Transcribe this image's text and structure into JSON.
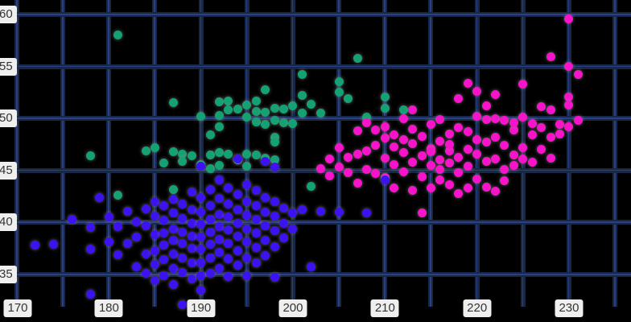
{
  "chart_data": {
    "type": "scatter",
    "title": "",
    "xlabel": "",
    "ylabel": "",
    "grid": true,
    "legend": "none",
    "x_ticks": [
      170,
      180,
      190,
      200,
      210,
      220,
      230
    ],
    "y_ticks": [
      60,
      55,
      50,
      45,
      40,
      35
    ],
    "x_gridlines": [
      170,
      175,
      180,
      185,
      190,
      195,
      200,
      205,
      210,
      215,
      220,
      225,
      230,
      235
    ],
    "y_gridlines": [
      60,
      55,
      50,
      45,
      40,
      35
    ],
    "x_axis_anchor": 170,
    "y_axis_anchor": 60,
    "x_grid_step": 5,
    "y_grid_step": 5,
    "series": [
      {
        "name": "green-cluster",
        "color": "#14a173",
        "points": [
          [
            178,
            46.4
          ],
          [
            181,
            58.0
          ],
          [
            181,
            42.6
          ],
          [
            184,
            46.9
          ],
          [
            185,
            47.2
          ],
          [
            186,
            45.7
          ],
          [
            187,
            51.5
          ],
          [
            187,
            46.8
          ],
          [
            187,
            43.2
          ],
          [
            188,
            46.6
          ],
          [
            188,
            45.9
          ],
          [
            189,
            46.4
          ],
          [
            190,
            50.2
          ],
          [
            190,
            45.6
          ],
          [
            191,
            48.4
          ],
          [
            191,
            46.5
          ],
          [
            191,
            45.2
          ],
          [
            192,
            51.6
          ],
          [
            192,
            50.3
          ],
          [
            192,
            49.2
          ],
          [
            192,
            46.7
          ],
          [
            192,
            45.5
          ],
          [
            193,
            51.7
          ],
          [
            193,
            50.8
          ],
          [
            193,
            46.6
          ],
          [
            194,
            50.9
          ],
          [
            194,
            46.0
          ],
          [
            195,
            51.3
          ],
          [
            195,
            50.1
          ],
          [
            195,
            46.6
          ],
          [
            195,
            45.4
          ],
          [
            196,
            51.7
          ],
          [
            196,
            50.7
          ],
          [
            196,
            49.7
          ],
          [
            196,
            46.5
          ],
          [
            197,
            52.8
          ],
          [
            197,
            50.6
          ],
          [
            197,
            49.4
          ],
          [
            197,
            46.2
          ],
          [
            198,
            51.0
          ],
          [
            198,
            49.8
          ],
          [
            198,
            48.2
          ],
          [
            198,
            47.7
          ],
          [
            198,
            46.0
          ],
          [
            199,
            50.9
          ],
          [
            199,
            49.6
          ],
          [
            200,
            51.2
          ],
          [
            200,
            49.5
          ],
          [
            201,
            54.2
          ],
          [
            201,
            52.2
          ],
          [
            201,
            50.5
          ],
          [
            202,
            51.4
          ],
          [
            202,
            43.5
          ],
          [
            203,
            50.5
          ],
          [
            205,
            53.5
          ],
          [
            205,
            52.5
          ],
          [
            206,
            51.9
          ],
          [
            207,
            55.8
          ],
          [
            208,
            50.1
          ],
          [
            210,
            52.1
          ],
          [
            210,
            51.0
          ],
          [
            212,
            50.8
          ]
        ]
      },
      {
        "name": "magenta-cluster",
        "color": "#f713c9",
        "points": [
          [
            203,
            45.2
          ],
          [
            204,
            46.1
          ],
          [
            204,
            44.5
          ],
          [
            205,
            45.3
          ],
          [
            205,
            47.2
          ],
          [
            206,
            46.3
          ],
          [
            206,
            44.8
          ],
          [
            207,
            48.8
          ],
          [
            207,
            46.6
          ],
          [
            207,
            43.8
          ],
          [
            208,
            45.1
          ],
          [
            208,
            46.9
          ],
          [
            208,
            49.6
          ],
          [
            209,
            47.4
          ],
          [
            209,
            44.7
          ],
          [
            209,
            48.9
          ],
          [
            210,
            46.2
          ],
          [
            210,
            48.1
          ],
          [
            210,
            44.3
          ],
          [
            210,
            49.2
          ],
          [
            211,
            45.6
          ],
          [
            211,
            47.3
          ],
          [
            211,
            43.3
          ],
          [
            211,
            48.4
          ],
          [
            212,
            44.9
          ],
          [
            212,
            46.7
          ],
          [
            212,
            48.0
          ],
          [
            212,
            50.0
          ],
          [
            213,
            45.8
          ],
          [
            213,
            47.6
          ],
          [
            213,
            43.1
          ],
          [
            213,
            49.0
          ],
          [
            213,
            50.8
          ],
          [
            214,
            44.4
          ],
          [
            214,
            46.4
          ],
          [
            214,
            48.3
          ],
          [
            214,
            40.9
          ],
          [
            215,
            45.5
          ],
          [
            215,
            47.1
          ],
          [
            215,
            49.4
          ],
          [
            215,
            43.3
          ],
          [
            215,
            46.8
          ],
          [
            216,
            44.1
          ],
          [
            216,
            46.0
          ],
          [
            216,
            47.8
          ],
          [
            216,
            49.9
          ],
          [
            216,
            45.1
          ],
          [
            217,
            46.9
          ],
          [
            217,
            48.5
          ],
          [
            217,
            43.6
          ],
          [
            217,
            45.7
          ],
          [
            217,
            47.5
          ],
          [
            218,
            44.8
          ],
          [
            218,
            46.3
          ],
          [
            218,
            49.1
          ],
          [
            218,
            51.9
          ],
          [
            218,
            42.8
          ],
          [
            219,
            45.4
          ],
          [
            219,
            47.0
          ],
          [
            219,
            48.7
          ],
          [
            219,
            53.4
          ],
          [
            219,
            43.3
          ],
          [
            220,
            44.2
          ],
          [
            220,
            46.6
          ],
          [
            220,
            48.0
          ],
          [
            220,
            50.2
          ],
          [
            220,
            52.6
          ],
          [
            221,
            45.9
          ],
          [
            221,
            47.7
          ],
          [
            221,
            49.9
          ],
          [
            221,
            43.4
          ],
          [
            221,
            51.2
          ],
          [
            222,
            46.1
          ],
          [
            222,
            48.2
          ],
          [
            222,
            50.0
          ],
          [
            222,
            52.3
          ],
          [
            222,
            43.0
          ],
          [
            223,
            45.1
          ],
          [
            223,
            47.4
          ],
          [
            223,
            49.8
          ],
          [
            223,
            44.0
          ],
          [
            224,
            46.5
          ],
          [
            224,
            48.9
          ],
          [
            224,
            49.6
          ],
          [
            224,
            45.5
          ],
          [
            225,
            47.2
          ],
          [
            225,
            50.1
          ],
          [
            225,
            53.3
          ],
          [
            225,
            46.1
          ],
          [
            226,
            48.4
          ],
          [
            226,
            49.5
          ],
          [
            226,
            45.8
          ],
          [
            227,
            47.0
          ],
          [
            227,
            49.1
          ],
          [
            227,
            51.1
          ],
          [
            228,
            50.8
          ],
          [
            228,
            55.9
          ],
          [
            228,
            48.2
          ],
          [
            228,
            46.2
          ],
          [
            229,
            49.4
          ],
          [
            229,
            48.5
          ],
          [
            230,
            59.6
          ],
          [
            230,
            55.0
          ],
          [
            230,
            52.1
          ],
          [
            230,
            51.3
          ],
          [
            230,
            49.2
          ],
          [
            231,
            54.2
          ],
          [
            231,
            49.8
          ]
        ]
      },
      {
        "name": "blue-cluster",
        "color": "#3d12f0",
        "points": [
          [
            172,
            37.8
          ],
          [
            174,
            37.9
          ],
          [
            176,
            40.3
          ],
          [
            178,
            39.5
          ],
          [
            178,
            37.4
          ],
          [
            178,
            33.1
          ],
          [
            179,
            42.4
          ],
          [
            180,
            40.5
          ],
          [
            180,
            38.1
          ],
          [
            181,
            39.6
          ],
          [
            181,
            36.9
          ],
          [
            182,
            41.1
          ],
          [
            182,
            38.0
          ],
          [
            183,
            40.1
          ],
          [
            183,
            38.6
          ],
          [
            183,
            35.7
          ],
          [
            184,
            41.3
          ],
          [
            184,
            39.7
          ],
          [
            184,
            37.0
          ],
          [
            184,
            35.1
          ],
          [
            185,
            42.0
          ],
          [
            185,
            40.6
          ],
          [
            185,
            38.8
          ],
          [
            185,
            37.3
          ],
          [
            185,
            36.0
          ],
          [
            185,
            34.4
          ],
          [
            186,
            41.6
          ],
          [
            186,
            40.2
          ],
          [
            186,
            39.0
          ],
          [
            186,
            37.8
          ],
          [
            186,
            36.4
          ],
          [
            186,
            34.9
          ],
          [
            187,
            42.2
          ],
          [
            187,
            40.9
          ],
          [
            187,
            39.4
          ],
          [
            187,
            38.3
          ],
          [
            187,
            37.0
          ],
          [
            187,
            35.6
          ],
          [
            187,
            34.0
          ],
          [
            188,
            41.8
          ],
          [
            188,
            40.4
          ],
          [
            188,
            39.1
          ],
          [
            188,
            38.0
          ],
          [
            188,
            36.6
          ],
          [
            188,
            35.2
          ],
          [
            188,
            32.1
          ],
          [
            189,
            42.9
          ],
          [
            189,
            41.2
          ],
          [
            189,
            39.9
          ],
          [
            189,
            38.7
          ],
          [
            189,
            37.5
          ],
          [
            189,
            36.1
          ],
          [
            189,
            34.6
          ],
          [
            190,
            45.4
          ],
          [
            190,
            42.4
          ],
          [
            190,
            41.0
          ],
          [
            190,
            39.8
          ],
          [
            190,
            38.6
          ],
          [
            190,
            37.4
          ],
          [
            190,
            36.1
          ],
          [
            190,
            34.9
          ],
          [
            190,
            33.5
          ],
          [
            191,
            43.2
          ],
          [
            191,
            41.6
          ],
          [
            191,
            40.3
          ],
          [
            191,
            39.1
          ],
          [
            191,
            37.9
          ],
          [
            191,
            36.6
          ],
          [
            191,
            35.1
          ],
          [
            192,
            44.1
          ],
          [
            192,
            42.3
          ],
          [
            192,
            40.8
          ],
          [
            192,
            39.6
          ],
          [
            192,
            38.4
          ],
          [
            192,
            37.1
          ],
          [
            192,
            35.6
          ],
          [
            193,
            43.3
          ],
          [
            193,
            41.8
          ],
          [
            193,
            40.5
          ],
          [
            193,
            39.3
          ],
          [
            193,
            38.0
          ],
          [
            193,
            36.5
          ],
          [
            193,
            34.8
          ],
          [
            194,
            46.1
          ],
          [
            194,
            42.7
          ],
          [
            194,
            41.2
          ],
          [
            194,
            39.9
          ],
          [
            194,
            38.7
          ],
          [
            194,
            37.3
          ],
          [
            194,
            35.9
          ],
          [
            195,
            43.6
          ],
          [
            195,
            42.0
          ],
          [
            195,
            40.7
          ],
          [
            195,
            39.4
          ],
          [
            195,
            38.1
          ],
          [
            195,
            36.6
          ],
          [
            195,
            34.9
          ],
          [
            196,
            43.1
          ],
          [
            196,
            41.6
          ],
          [
            196,
            40.3
          ],
          [
            196,
            39.0
          ],
          [
            196,
            37.6
          ],
          [
            196,
            36.1
          ],
          [
            197,
            45.9
          ],
          [
            197,
            42.4
          ],
          [
            197,
            41.0
          ],
          [
            197,
            39.7
          ],
          [
            197,
            38.3
          ],
          [
            197,
            36.8
          ],
          [
            198,
            45.3
          ],
          [
            198,
            42.0
          ],
          [
            198,
            40.6
          ],
          [
            198,
            39.2
          ],
          [
            198,
            37.7
          ],
          [
            198,
            34.7
          ],
          [
            199,
            41.4
          ],
          [
            199,
            39.9
          ],
          [
            199,
            38.5
          ],
          [
            200,
            40.9
          ],
          [
            200,
            39.4
          ],
          [
            201,
            41.2
          ],
          [
            202,
            35.7
          ],
          [
            203,
            41.1
          ],
          [
            205,
            41.0
          ],
          [
            208,
            40.9
          ],
          [
            210,
            44.1
          ]
        ]
      }
    ]
  },
  "colors": {
    "background": "#000000",
    "grid_band": "#182744",
    "grid_core": "#3854be",
    "tick_chip_bg": "#efefef",
    "tick_text": "#333333"
  }
}
